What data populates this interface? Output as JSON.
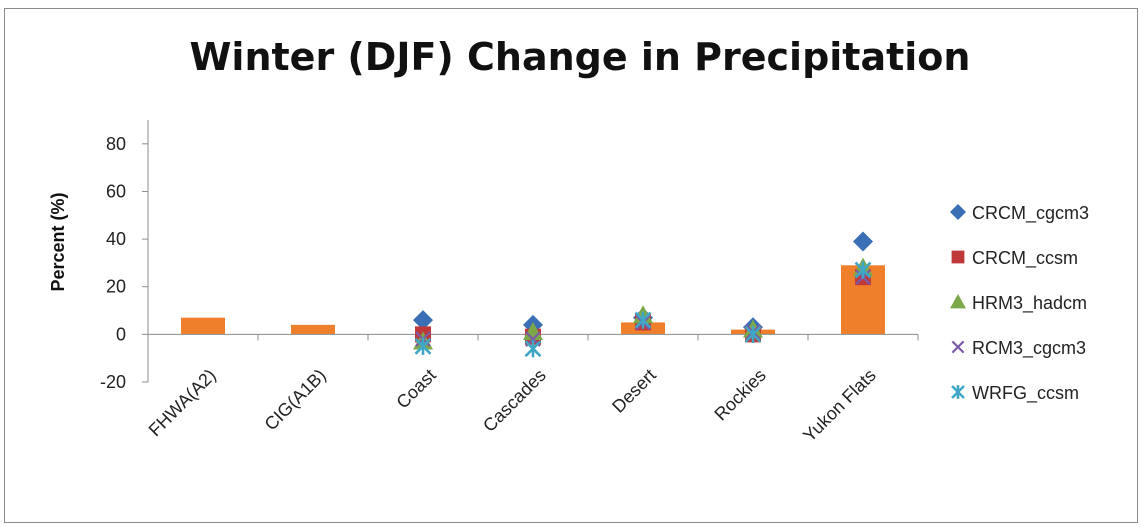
{
  "chart_data": {
    "type": "bar",
    "title": "Winter (DJF) Change in Precipitation",
    "xlabel": "",
    "ylabel": "Percent (%)",
    "ylim": [
      -20,
      90
    ],
    "yticks": [
      -20,
      0,
      20,
      40,
      60,
      80
    ],
    "grid": false,
    "legend_position": "right",
    "categories": [
      "FHWA(A2)",
      "CIG(A1B)",
      "Coast",
      "Cascades",
      "Desert",
      "Rockies",
      "Yukon Flats"
    ],
    "bar_series": {
      "color": "#f07f2b",
      "values": [
        7,
        4,
        0,
        0,
        5,
        2,
        29
      ]
    },
    "series": [
      {
        "name": "CRCM_cgcm3",
        "marker": "diamond",
        "color": "#3a6fb5",
        "values": [
          null,
          null,
          6,
          4,
          7,
          3,
          39
        ]
      },
      {
        "name": "CRCM_ccsm",
        "marker": "square",
        "color": "#c0393a",
        "values": [
          null,
          null,
          0,
          -1,
          5,
          0,
          24
        ]
      },
      {
        "name": "HRM3_hadcm",
        "marker": "triangle",
        "color": "#7da84a",
        "values": [
          null,
          null,
          -3,
          1,
          8,
          2,
          28
        ]
      },
      {
        "name": "RCM3_cgcm3",
        "marker": "x",
        "color": "#7b5aa6",
        "values": [
          null,
          null,
          -2,
          -2,
          5,
          1,
          24
        ]
      },
      {
        "name": "WRFG_ccsm",
        "marker": "star",
        "color": "#3fa6c6",
        "values": [
          null,
          null,
          -5,
          -6,
          6,
          0,
          27
        ]
      }
    ]
  }
}
